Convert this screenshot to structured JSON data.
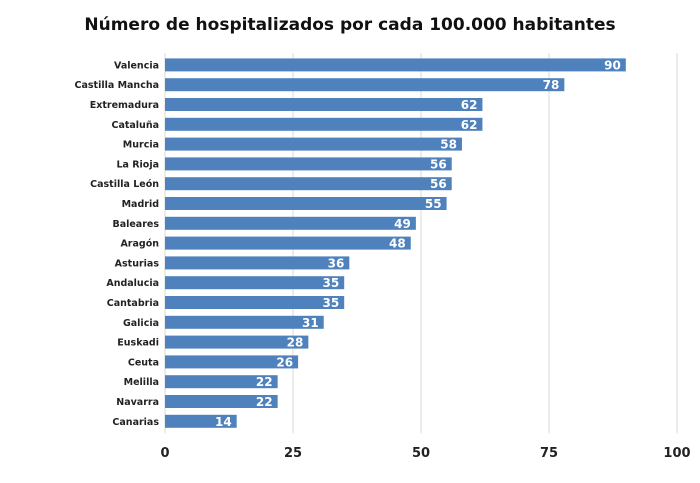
{
  "chart_data": {
    "type": "bar",
    "orientation": "horizontal",
    "title": "Número de hospitalizados por cada 100.000 habitantes",
    "categories": [
      "Valencia",
      "Castilla Mancha",
      "Extremadura",
      "Cataluña",
      "Murcia",
      "La Rioja",
      "Castilla León",
      "Madrid",
      "Baleares",
      "Aragón",
      "Asturias",
      "Andalucia",
      "Cantabria",
      "Galicia",
      "Euskadi",
      "Ceuta",
      "Melilla",
      "Navarra",
      "Canarias"
    ],
    "values": [
      90,
      78,
      62,
      62,
      58,
      56,
      56,
      55,
      49,
      48,
      36,
      35,
      35,
      31,
      28,
      26,
      22,
      22,
      14
    ],
    "xlim": [
      0,
      100
    ],
    "xticks": [
      "0",
      "25",
      "50",
      "75",
      "100"
    ],
    "xlabel": "",
    "ylabel": "",
    "grid": "vertical",
    "data_labels": "inside-end",
    "colors": {
      "bar": "#4f81bd",
      "grid": "#d9d9d9",
      "label_inside": "#ffffff"
    }
  }
}
